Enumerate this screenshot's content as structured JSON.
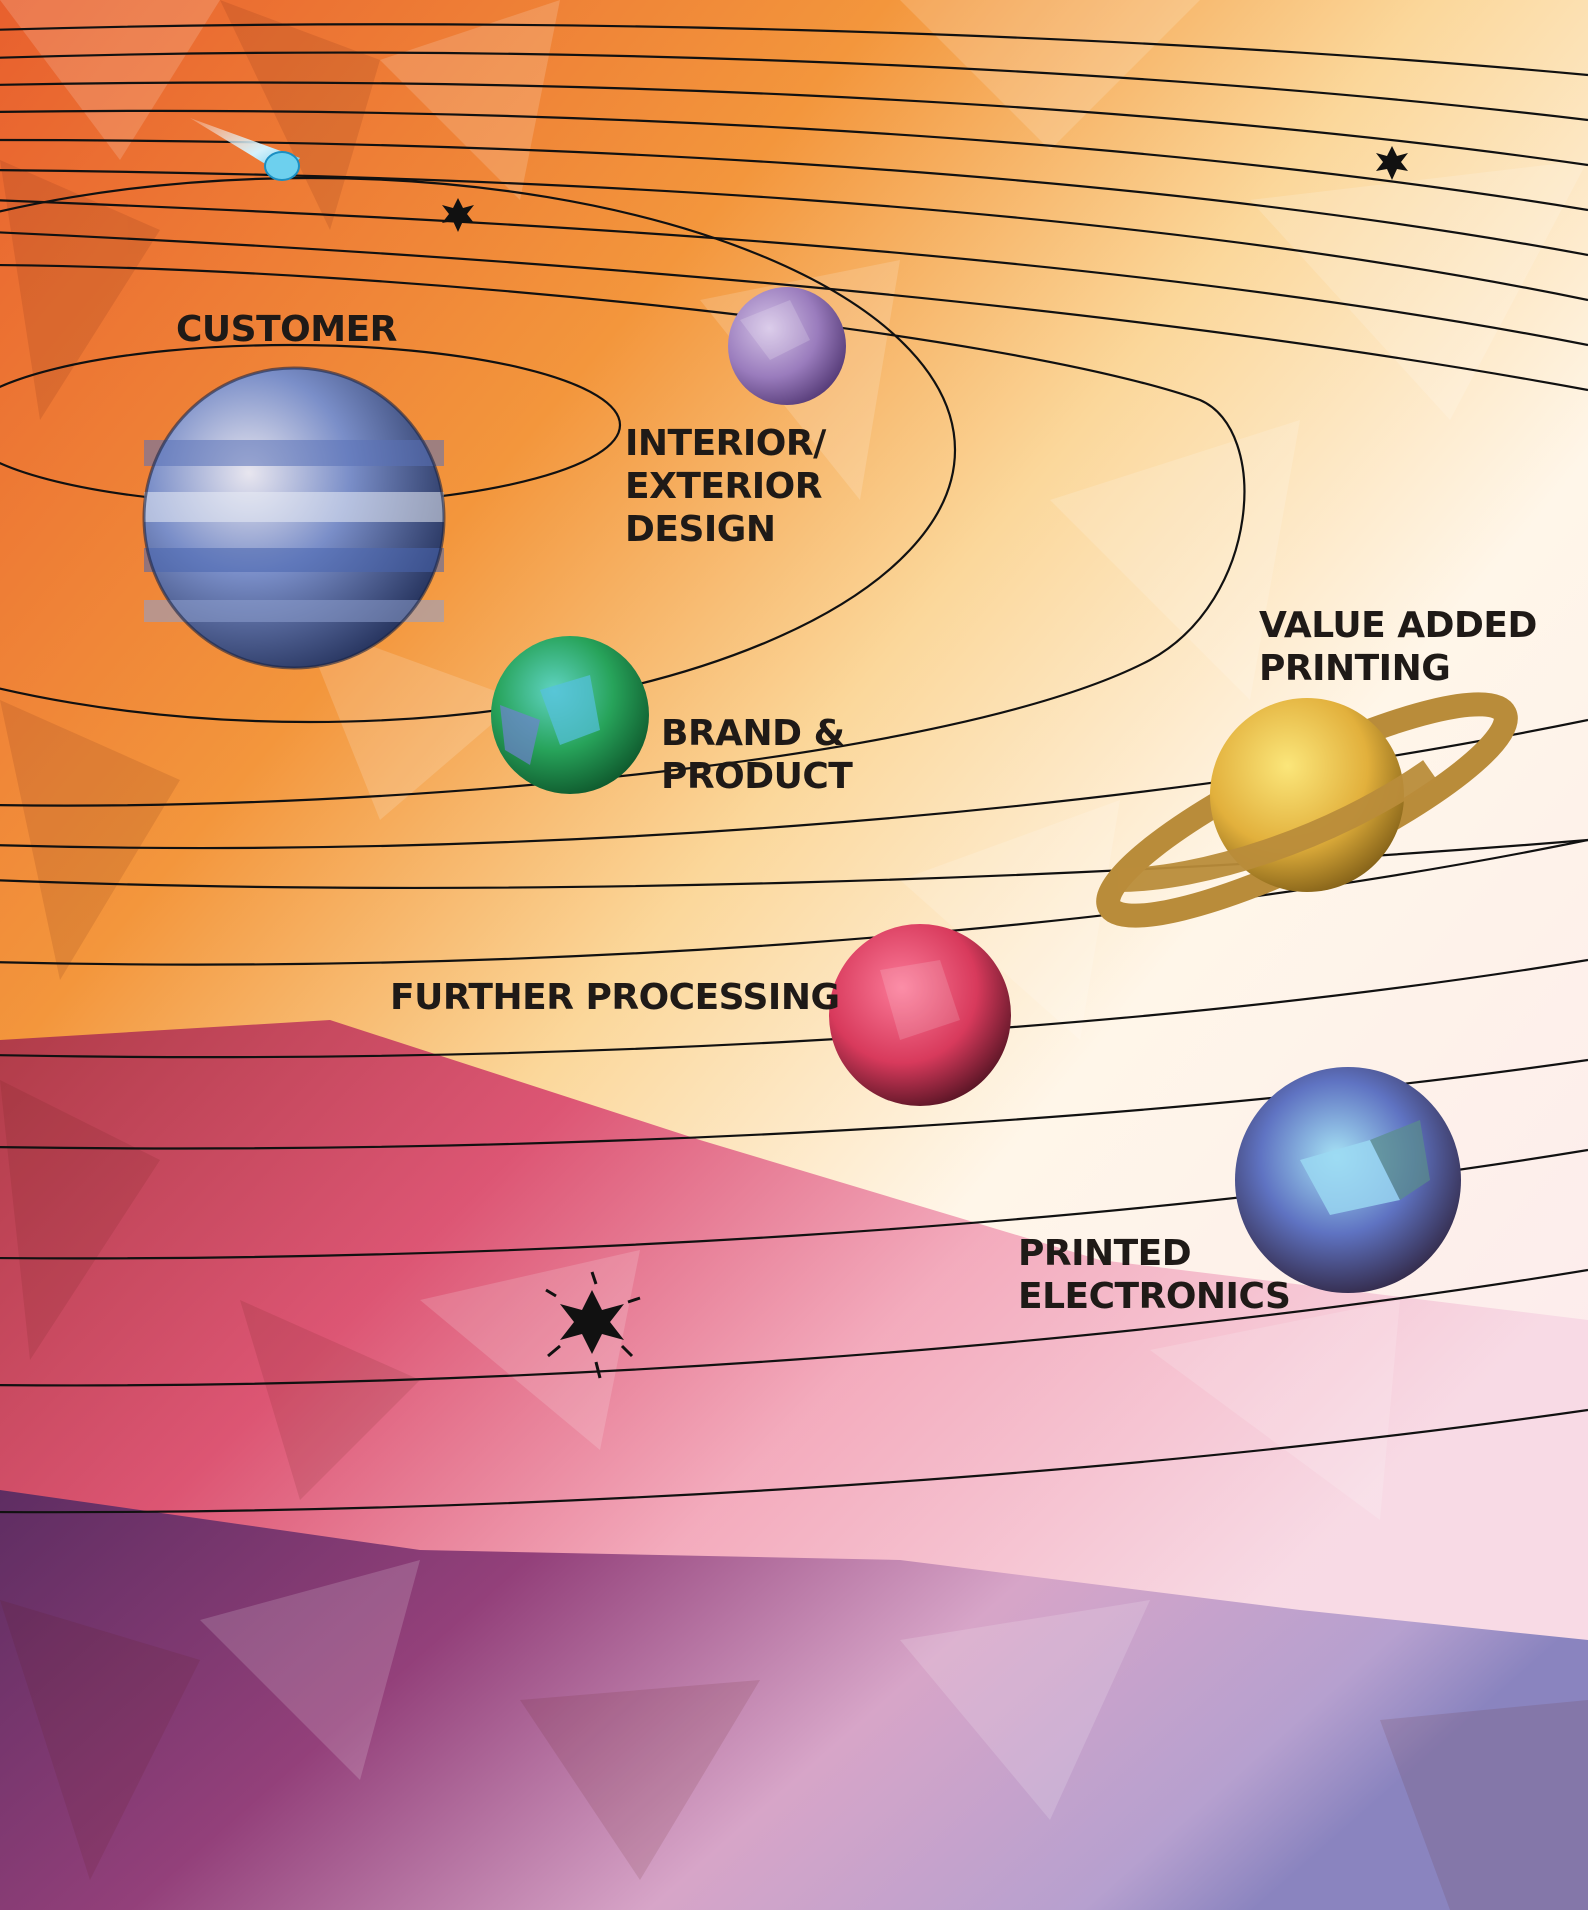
{
  "labels": {
    "customer": "CUSTOMER",
    "interior": [
      "INTERIOR/",
      "EXTERIOR",
      "DESIGN"
    ],
    "brand": [
      "BRAND &",
      "PRODUCT"
    ],
    "value_added": [
      "VALUE ADDED",
      "PRINTING"
    ],
    "further": "FURTHER PROCESSING",
    "printed": [
      "PRINTED",
      "ELECTRONICS"
    ]
  },
  "planets": [
    {
      "id": "customer",
      "icon": "striped-blue-planet-icon"
    },
    {
      "id": "interior",
      "icon": "purple-planet-icon"
    },
    {
      "id": "brand",
      "icon": "green-earth-planet-icon"
    },
    {
      "id": "value_added",
      "icon": "ringed-gold-planet-icon"
    },
    {
      "id": "further",
      "icon": "red-planet-icon"
    },
    {
      "id": "printed",
      "icon": "blue-crystal-planet-icon"
    }
  ],
  "colors": {
    "orange": "#ec6a30",
    "amber": "#f6b24e",
    "cream": "#fff8ec",
    "pink": "#e46a8f",
    "magenta": "#b14a86",
    "purple": "#6a3a70",
    "lavender": "#a48cc8",
    "orbit": "#111111",
    "label": "#1f1a17"
  }
}
